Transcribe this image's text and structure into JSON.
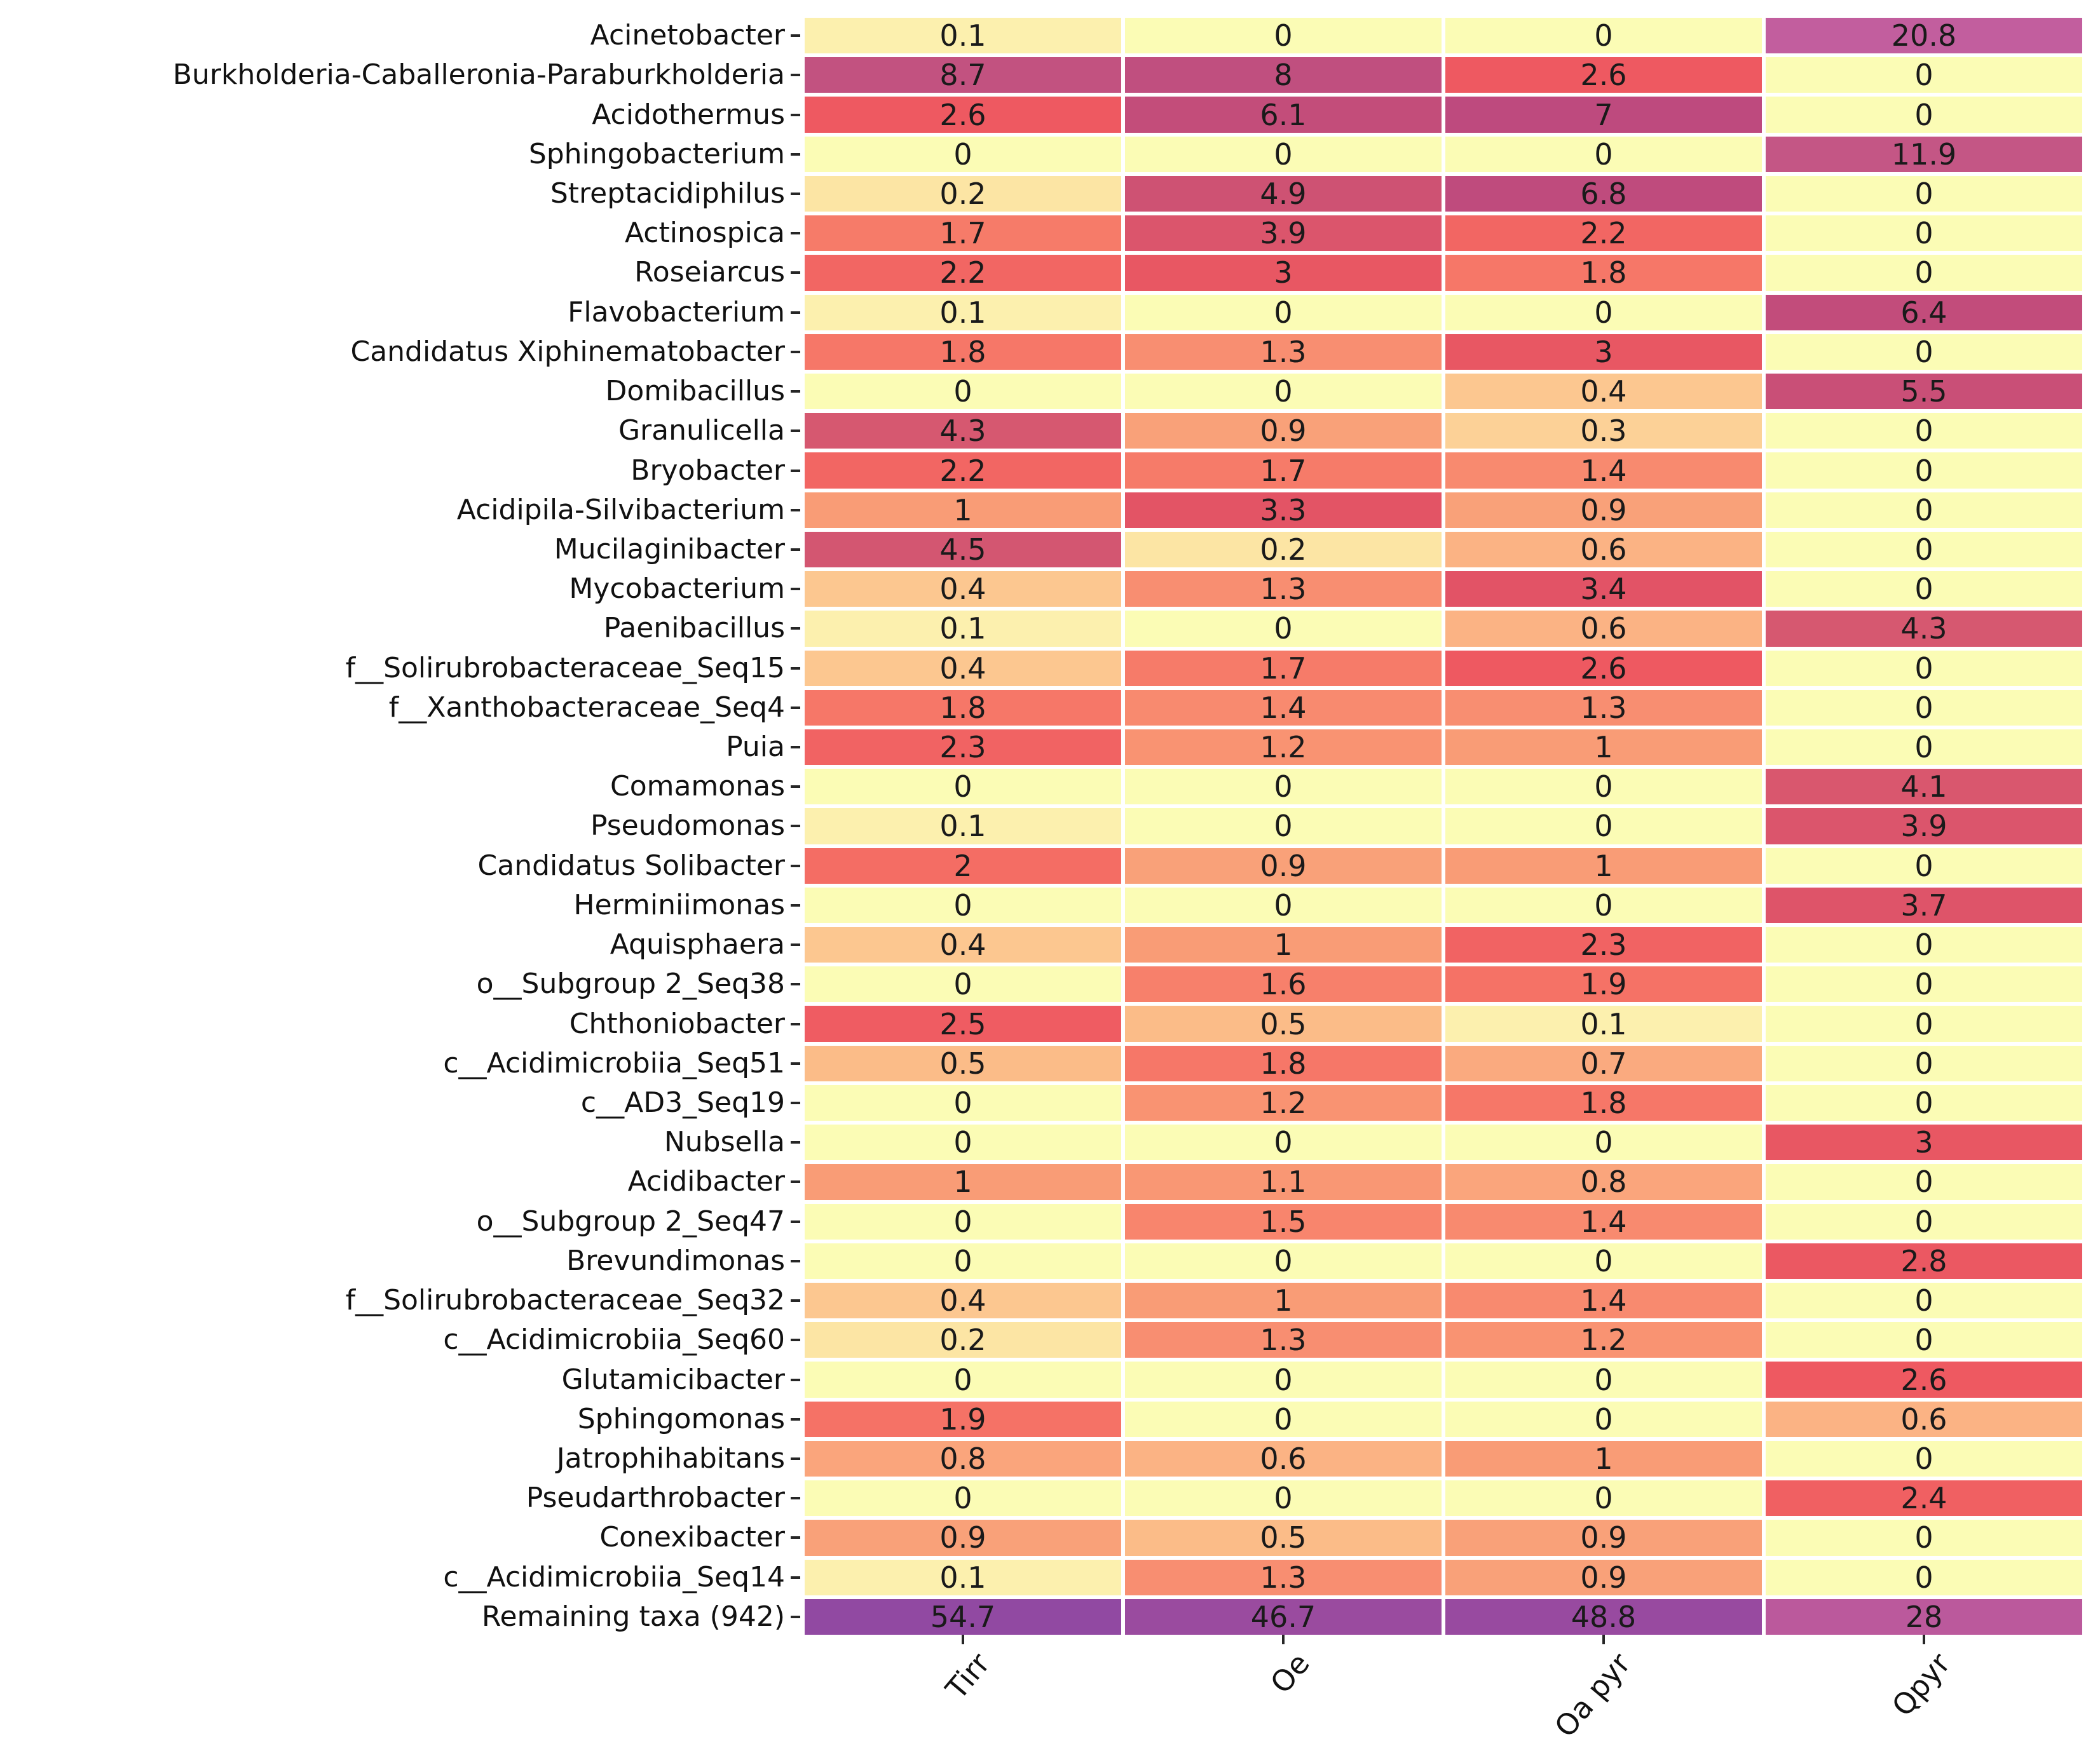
{
  "page": {
    "background": "#ffffff"
  },
  "chart_data": {
    "type": "heatmap",
    "title": "",
    "xlabel": "",
    "ylabel": "",
    "annotations_shown": true,
    "grid_line_color": "#ffffff",
    "annotation_color": "#1a1a1a",
    "axis_label_color": "#111111",
    "tick_mark_color": "#262626",
    "columns": [
      "Tirr",
      "Oe",
      "Oa pyr",
      "Qpyr"
    ],
    "rows": [
      {
        "label": "Acinetobacter",
        "values": [
          0.1,
          0,
          0,
          20.8
        ]
      },
      {
        "label": "Burkholderia-Caballeronia-Paraburkholderia",
        "values": [
          8.7,
          8,
          2.6,
          0
        ]
      },
      {
        "label": "Acidothermus",
        "values": [
          2.6,
          6.1,
          7,
          0
        ]
      },
      {
        "label": "Sphingobacterium",
        "values": [
          0,
          0,
          0,
          11.9
        ]
      },
      {
        "label": "Streptacidiphilus",
        "values": [
          0.2,
          4.9,
          6.8,
          0
        ]
      },
      {
        "label": "Actinospica",
        "values": [
          1.7,
          3.9,
          2.2,
          0
        ]
      },
      {
        "label": "Roseiarcus",
        "values": [
          2.2,
          3,
          1.8,
          0
        ]
      },
      {
        "label": "Flavobacterium",
        "values": [
          0.1,
          0,
          0,
          6.4
        ]
      },
      {
        "label": "Candidatus Xiphinematobacter",
        "values": [
          1.8,
          1.3,
          3,
          0
        ]
      },
      {
        "label": "Domibacillus",
        "values": [
          0,
          0,
          0.4,
          5.5
        ]
      },
      {
        "label": "Granulicella",
        "values": [
          4.3,
          0.9,
          0.3,
          0
        ]
      },
      {
        "label": "Bryobacter",
        "values": [
          2.2,
          1.7,
          1.4,
          0
        ]
      },
      {
        "label": "Acidipila-Silvibacterium",
        "values": [
          1,
          3.3,
          0.9,
          0
        ]
      },
      {
        "label": "Mucilaginibacter",
        "values": [
          4.5,
          0.2,
          0.6,
          0
        ]
      },
      {
        "label": "Mycobacterium",
        "values": [
          0.4,
          1.3,
          3.4,
          0
        ]
      },
      {
        "label": "Paenibacillus",
        "values": [
          0.1,
          0,
          0.6,
          4.3
        ]
      },
      {
        "label": "f__Solirubrobacteraceae_Seq15",
        "values": [
          0.4,
          1.7,
          2.6,
          0
        ]
      },
      {
        "label": "f__Xanthobacteraceae_Seq4",
        "values": [
          1.8,
          1.4,
          1.3,
          0
        ]
      },
      {
        "label": "Puia",
        "values": [
          2.3,
          1.2,
          1,
          0
        ]
      },
      {
        "label": "Comamonas",
        "values": [
          0,
          0,
          0,
          4.1
        ]
      },
      {
        "label": "Pseudomonas",
        "values": [
          0.1,
          0,
          0,
          3.9
        ]
      },
      {
        "label": "Candidatus Solibacter",
        "values": [
          2,
          0.9,
          1,
          0
        ]
      },
      {
        "label": "Herminiimonas",
        "values": [
          0,
          0,
          0,
          3.7
        ]
      },
      {
        "label": "Aquisphaera",
        "values": [
          0.4,
          1,
          2.3,
          0
        ]
      },
      {
        "label": "o__Subgroup 2_Seq38",
        "values": [
          0,
          1.6,
          1.9,
          0
        ]
      },
      {
        "label": "Chthoniobacter",
        "values": [
          2.5,
          0.5,
          0.1,
          0
        ]
      },
      {
        "label": "c__Acidimicrobiia_Seq51",
        "values": [
          0.5,
          1.8,
          0.7,
          0
        ]
      },
      {
        "label": "c__AD3_Seq19",
        "values": [
          0,
          1.2,
          1.8,
          0
        ]
      },
      {
        "label": "Nubsella",
        "values": [
          0,
          0,
          0,
          3
        ]
      },
      {
        "label": "Acidibacter",
        "values": [
          1,
          1.1,
          0.8,
          0
        ]
      },
      {
        "label": "o__Subgroup 2_Seq47",
        "values": [
          0,
          1.5,
          1.4,
          0
        ]
      },
      {
        "label": "Brevundimonas",
        "values": [
          0,
          0,
          0,
          2.8
        ]
      },
      {
        "label": "f__Solirubrobacteraceae_Seq32",
        "values": [
          0.4,
          1,
          1.4,
          0
        ]
      },
      {
        "label": "c__Acidimicrobiia_Seq60",
        "values": [
          0.2,
          1.3,
          1.2,
          0
        ]
      },
      {
        "label": "Glutamicibacter",
        "values": [
          0,
          0,
          0,
          2.6
        ]
      },
      {
        "label": "Sphingomonas",
        "values": [
          1.9,
          0,
          0,
          0.6
        ]
      },
      {
        "label": "Jatrophihabitans",
        "values": [
          0.8,
          0.6,
          1,
          0
        ]
      },
      {
        "label": "Pseudarthrobacter",
        "values": [
          0,
          0,
          0,
          2.4
        ]
      },
      {
        "label": "Conexibacter",
        "values": [
          0.9,
          0.5,
          0.9,
          0
        ]
      },
      {
        "label": "c__Acidimicrobiia_Seq14",
        "values": [
          0.1,
          1.3,
          0.9,
          0
        ]
      },
      {
        "label": "Remaining taxa (942)",
        "values": [
          54.7,
          46.7,
          48.8,
          28
        ]
      }
    ],
    "colormap_stops": [
      [
        0,
        "#fbfcb5"
      ],
      [
        0.1,
        "#fcf0ae"
      ],
      [
        0.2,
        "#fce5a4"
      ],
      [
        0.3,
        "#fcd197"
      ],
      [
        0.5,
        "#fbbc88"
      ],
      [
        0.7,
        "#faaa7f"
      ],
      [
        1,
        "#f99c76"
      ],
      [
        1.5,
        "#f8856d"
      ],
      [
        2,
        "#f46d64"
      ],
      [
        2.6,
        "#ee5961"
      ],
      [
        3,
        "#e85763"
      ],
      [
        3.5,
        "#e05267"
      ],
      [
        4.3,
        "#d65870"
      ],
      [
        5,
        "#cd5174"
      ],
      [
        6,
        "#c44d79"
      ],
      [
        7,
        "#be4a7e"
      ],
      [
        8.7,
        "#c25280"
      ],
      [
        11.9,
        "#c45685"
      ],
      [
        20.8,
        "#c25e9e"
      ],
      [
        28,
        "#bb599c"
      ],
      [
        46.7,
        "#9a4b9f"
      ],
      [
        54.7,
        "#9149a2"
      ]
    ]
  }
}
